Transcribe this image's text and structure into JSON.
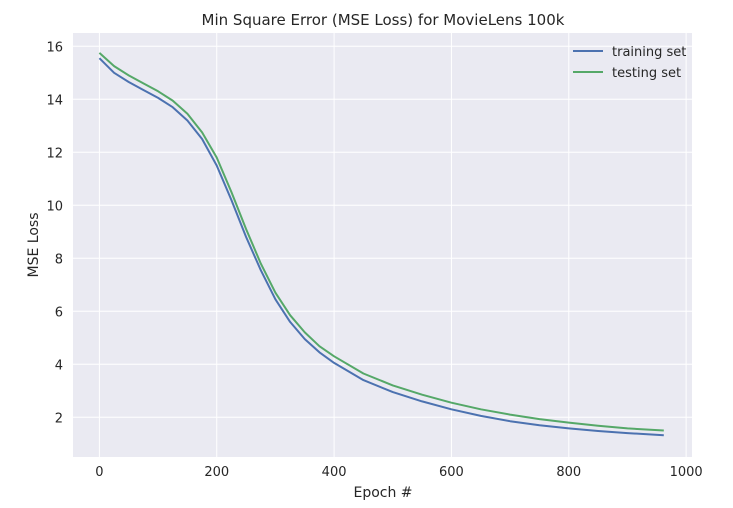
{
  "chart_data": {
    "type": "line",
    "title": "Min Square Error (MSE Loss) for MovieLens 100k",
    "xlabel": "Epoch #",
    "ylabel": "MSE Loss",
    "xlim": [
      -45,
      1010
    ],
    "ylim": [
      0.5,
      16.5
    ],
    "xticks": [
      0,
      200,
      400,
      600,
      800,
      1000
    ],
    "yticks": [
      2,
      4,
      6,
      8,
      10,
      12,
      14,
      16
    ],
    "grid": true,
    "legend_position": "top-right",
    "series": [
      {
        "name": "training set",
        "color": "#4c72b0",
        "x": [
          0,
          25,
          50,
          75,
          100,
          125,
          150,
          175,
          200,
          225,
          250,
          275,
          300,
          325,
          350,
          375,
          400,
          450,
          500,
          550,
          600,
          650,
          700,
          750,
          800,
          850,
          900,
          962
        ],
        "y": [
          15.55,
          15.0,
          14.65,
          14.35,
          14.05,
          13.7,
          13.2,
          12.5,
          11.5,
          10.2,
          8.8,
          7.55,
          6.45,
          5.6,
          4.95,
          4.45,
          4.05,
          3.4,
          2.95,
          2.6,
          2.3,
          2.05,
          1.85,
          1.7,
          1.58,
          1.48,
          1.4,
          1.32
        ]
      },
      {
        "name": "testing set",
        "color": "#55a868",
        "x": [
          0,
          25,
          50,
          75,
          100,
          125,
          150,
          175,
          200,
          225,
          250,
          275,
          300,
          325,
          350,
          375,
          400,
          450,
          500,
          550,
          600,
          650,
          700,
          750,
          800,
          850,
          900,
          962
        ],
        "y": [
          15.75,
          15.25,
          14.9,
          14.6,
          14.3,
          13.95,
          13.45,
          12.75,
          11.8,
          10.5,
          9.1,
          7.8,
          6.7,
          5.85,
          5.2,
          4.68,
          4.3,
          3.65,
          3.2,
          2.85,
          2.55,
          2.3,
          2.1,
          1.93,
          1.8,
          1.68,
          1.58,
          1.5
        ]
      }
    ]
  }
}
